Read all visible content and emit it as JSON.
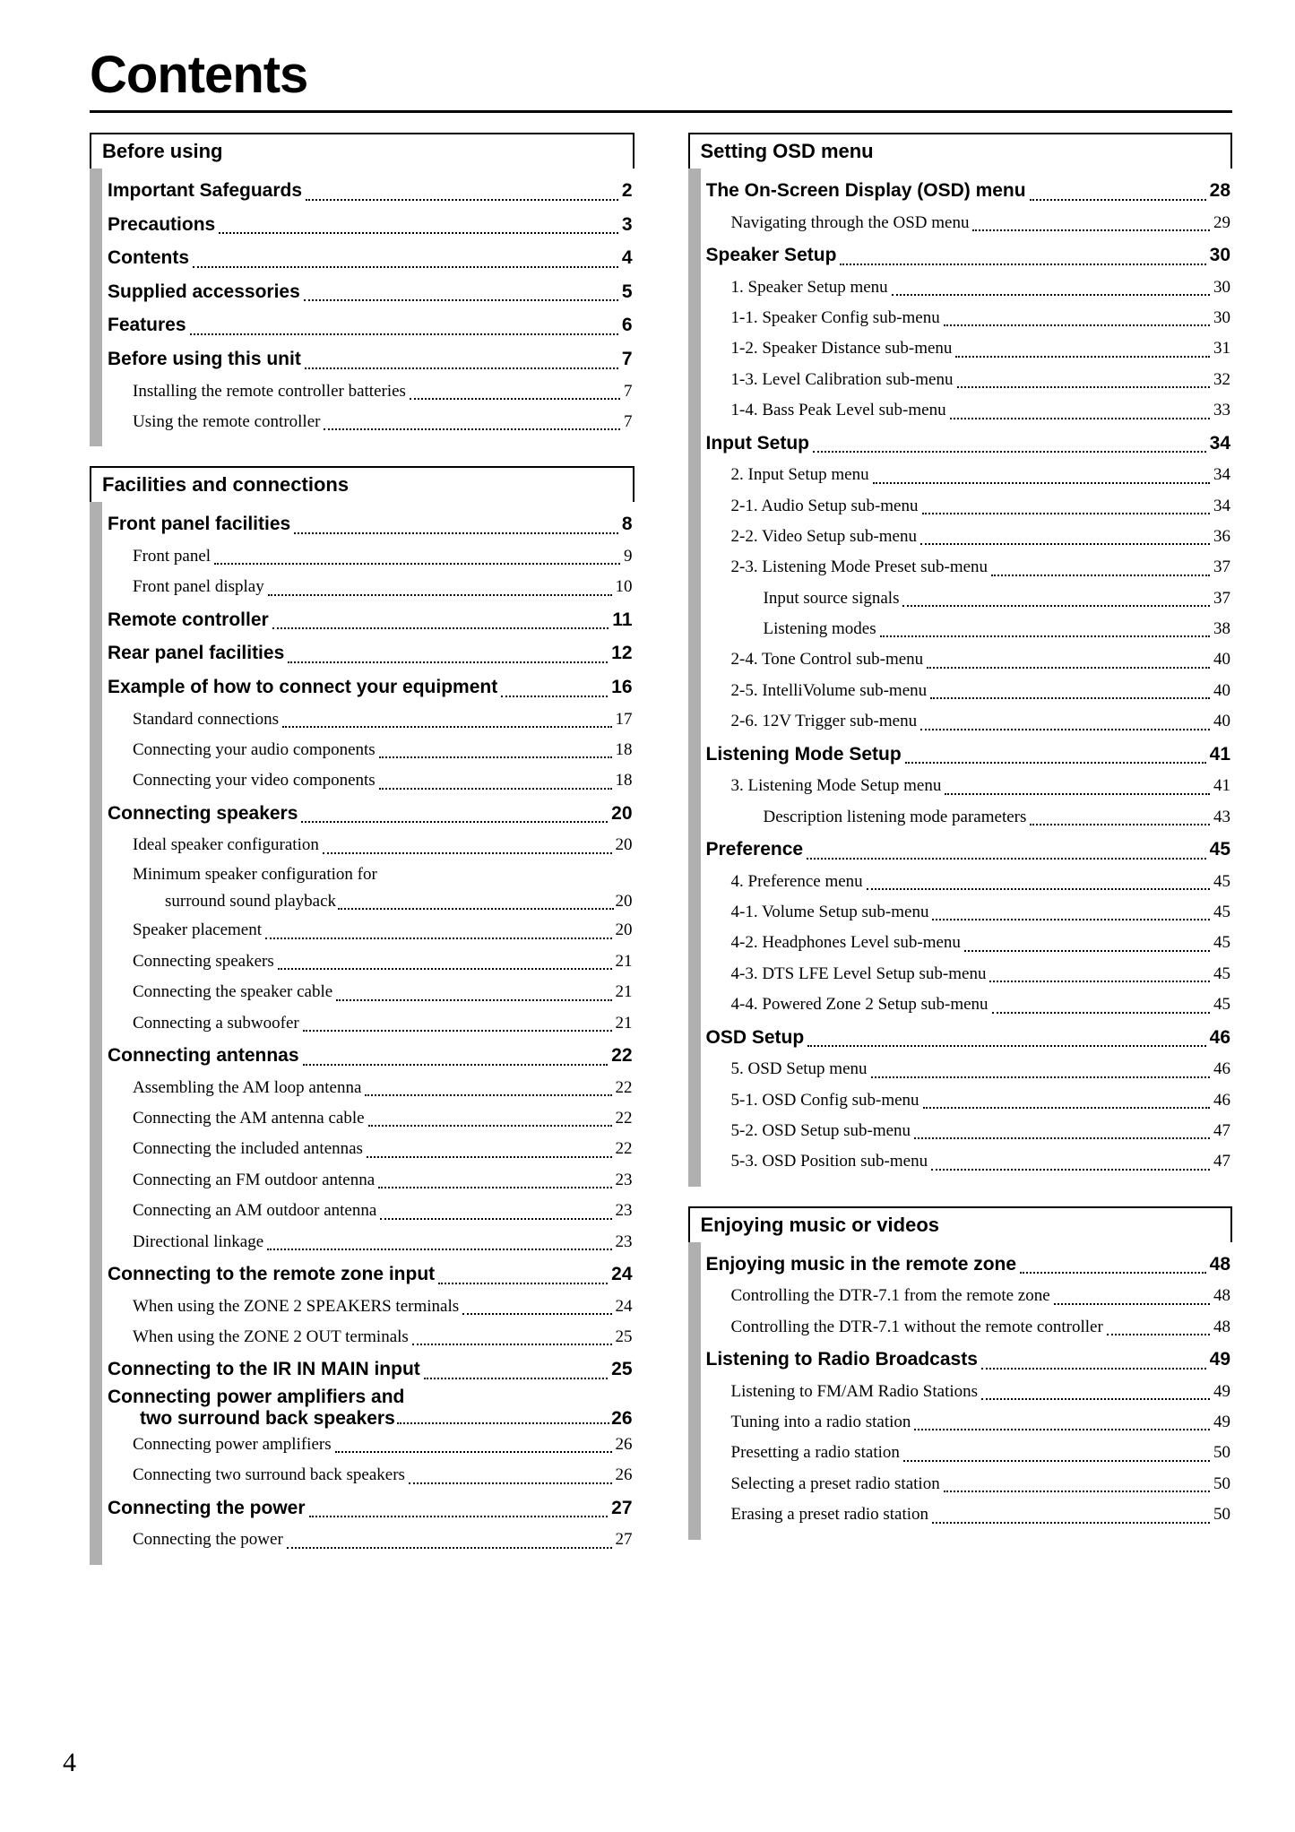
{
  "title": "Contents",
  "page_number": "4",
  "columns": [
    {
      "sections": [
        {
          "header": "Before using",
          "entries": [
            {
              "level": 0,
              "label": "Important Safeguards",
              "page": "2"
            },
            {
              "level": 0,
              "label": "Precautions",
              "page": "3"
            },
            {
              "level": 0,
              "label": "Contents",
              "page": "4"
            },
            {
              "level": 0,
              "label": "Supplied accessories",
              "page": "5"
            },
            {
              "level": 0,
              "label": "Features",
              "page": "6"
            },
            {
              "level": 0,
              "label": "Before using this unit",
              "page": "7"
            },
            {
              "level": 1,
              "label": "Installing the remote controller batteries",
              "page": "7"
            },
            {
              "level": 1,
              "label": "Using the remote controller",
              "page": "7"
            }
          ]
        },
        {
          "header": "Facilities and connections",
          "entries": [
            {
              "level": 0,
              "label": "Front panel facilities",
              "page": "8"
            },
            {
              "level": 1,
              "label": "Front panel",
              "page": "9"
            },
            {
              "level": 1,
              "label": "Front panel display",
              "page": "10"
            },
            {
              "level": 0,
              "label": "Remote controller",
              "page": "11"
            },
            {
              "level": 0,
              "label": "Rear panel facilities",
              "page": "12"
            },
            {
              "level": 0,
              "label": "Example of how to connect your equipment",
              "page": "16"
            },
            {
              "level": 1,
              "label": "Standard connections",
              "page": "17"
            },
            {
              "level": 1,
              "label": "Connecting your audio components",
              "page": "18"
            },
            {
              "level": 1,
              "label": "Connecting your video components",
              "page": "18"
            },
            {
              "level": 0,
              "label": "Connecting speakers",
              "page": "20"
            },
            {
              "level": 1,
              "label": "Ideal speaker configuration",
              "page": "20"
            },
            {
              "level": 1,
              "multi": true,
              "line1": "Minimum speaker configuration for",
              "line2": "surround sound playback",
              "page": "20"
            },
            {
              "level": 1,
              "label": "Speaker placement",
              "page": "20"
            },
            {
              "level": 1,
              "label": "Connecting speakers",
              "page": "21"
            },
            {
              "level": 1,
              "label": "Connecting the speaker cable",
              "page": "21"
            },
            {
              "level": 1,
              "label": "Connecting a subwoofer",
              "page": "21"
            },
            {
              "level": 0,
              "label": "Connecting antennas",
              "page": "22"
            },
            {
              "level": 1,
              "label": "Assembling the AM loop antenna",
              "page": "22"
            },
            {
              "level": 1,
              "label": "Connecting the AM antenna cable",
              "page": "22"
            },
            {
              "level": 1,
              "label": "Connecting the included antennas",
              "page": "22"
            },
            {
              "level": 1,
              "label": "Connecting an FM outdoor antenna",
              "page": "23"
            },
            {
              "level": 1,
              "label": "Connecting an AM outdoor antenna",
              "page": "23"
            },
            {
              "level": 1,
              "label": "Directional linkage",
              "page": "23"
            },
            {
              "level": 0,
              "label": "Connecting to the remote zone input",
              "page": "24"
            },
            {
              "level": 1,
              "label": "When using the ZONE 2 SPEAKERS terminals",
              "page": "24"
            },
            {
              "level": 1,
              "label": "When using the ZONE 2 OUT terminals",
              "page": "25"
            },
            {
              "level": 0,
              "label": "Connecting to the IR IN MAIN input",
              "page": "25"
            },
            {
              "level": 0,
              "multi": true,
              "line1": "Connecting power amplifiers and",
              "line2": "two surround back speakers",
              "page": "26"
            },
            {
              "level": 1,
              "label": "Connecting power amplifiers",
              "page": "26"
            },
            {
              "level": 1,
              "label": "Connecting two surround back speakers",
              "page": "26"
            },
            {
              "level": 0,
              "label": "Connecting the power",
              "page": "27"
            },
            {
              "level": 1,
              "label": "Connecting the power",
              "page": "27"
            }
          ]
        }
      ]
    },
    {
      "sections": [
        {
          "header": "Setting OSD menu",
          "entries": [
            {
              "level": 0,
              "label": "The On-Screen Display (OSD) menu",
              "page": "28"
            },
            {
              "level": 1,
              "label": "Navigating through the OSD menu",
              "page": "29"
            },
            {
              "level": 0,
              "label": "Speaker Setup",
              "page": "30"
            },
            {
              "level": 1,
              "label": "1. Speaker Setup menu",
              "page": "30"
            },
            {
              "level": 1,
              "label": "1-1. Speaker Config sub-menu",
              "page": "30"
            },
            {
              "level": 1,
              "label": "1-2. Speaker Distance sub-menu",
              "page": "31"
            },
            {
              "level": 1,
              "label": "1-3. Level Calibration sub-menu",
              "page": "32"
            },
            {
              "level": 1,
              "label": "1-4. Bass Peak Level sub-menu",
              "page": "33"
            },
            {
              "level": 0,
              "label": "Input Setup",
              "page": "34"
            },
            {
              "level": 1,
              "label": "2. Input Setup menu",
              "page": "34"
            },
            {
              "level": 1,
              "label": "2-1. Audio Setup sub-menu",
              "page": "34"
            },
            {
              "level": 1,
              "label": "2-2. Video Setup sub-menu",
              "page": "36"
            },
            {
              "level": 1,
              "label": "2-3. Listening Mode Preset sub-menu",
              "page": "37"
            },
            {
              "level": 2,
              "label": "Input source signals",
              "page": "37"
            },
            {
              "level": 2,
              "label": "Listening modes",
              "page": "38"
            },
            {
              "level": 1,
              "label": "2-4. Tone Control sub-menu",
              "page": "40"
            },
            {
              "level": 1,
              "label": "2-5.  IntelliVolume sub-menu",
              "page": "40"
            },
            {
              "level": 1,
              "label": "2-6. 12V Trigger sub-menu",
              "page": "40"
            },
            {
              "level": 0,
              "label": "Listening Mode Setup",
              "page": "41"
            },
            {
              "level": 1,
              "label": "3. Listening Mode Setup menu",
              "page": "41"
            },
            {
              "level": 2,
              "label": "Description listening mode parameters",
              "page": "43"
            },
            {
              "level": 0,
              "label": "Preference",
              "page": "45"
            },
            {
              "level": 1,
              "label": "4. Preference menu",
              "page": "45"
            },
            {
              "level": 1,
              "label": "4-1. Volume Setup sub-menu",
              "page": "45"
            },
            {
              "level": 1,
              "label": "4-2. Headphones Level sub-menu",
              "page": "45"
            },
            {
              "level": 1,
              "label": "4-3. DTS LFE Level Setup sub-menu",
              "page": "45"
            },
            {
              "level": 1,
              "label": "4-4. Powered Zone 2 Setup sub-menu",
              "page": "45"
            },
            {
              "level": 0,
              "label": "OSD Setup",
              "page": "46"
            },
            {
              "level": 1,
              "label": "5. OSD Setup menu",
              "page": "46"
            },
            {
              "level": 1,
              "label": "5-1. OSD Config sub-menu",
              "page": "46"
            },
            {
              "level": 1,
              "label": "5-2. OSD Setup sub-menu",
              "page": "47"
            },
            {
              "level": 1,
              "label": "5-3. OSD Position sub-menu",
              "page": "47"
            }
          ]
        },
        {
          "header": "Enjoying music or videos",
          "entries": [
            {
              "level": 0,
              "label": "Enjoying music in the remote zone",
              "page": "48"
            },
            {
              "level": 1,
              "label": "Controlling the DTR-7.1 from the remote zone",
              "page": "48"
            },
            {
              "level": 1,
              "label": "Controlling the DTR-7.1 without the remote controller",
              "page": "48"
            },
            {
              "level": 0,
              "label": "Listening to Radio Broadcasts",
              "page": "49"
            },
            {
              "level": 1,
              "label": "Listening to FM/AM Radio Stations",
              "page": "49"
            },
            {
              "level": 1,
              "label": "Tuning into a radio station",
              "page": "49"
            },
            {
              "level": 1,
              "label": "Presetting a radio station",
              "page": "50"
            },
            {
              "level": 1,
              "label": "Selecting a preset radio station",
              "page": "50"
            },
            {
              "level": 1,
              "label": "Erasing a preset radio station",
              "page": "50"
            }
          ]
        }
      ]
    }
  ]
}
